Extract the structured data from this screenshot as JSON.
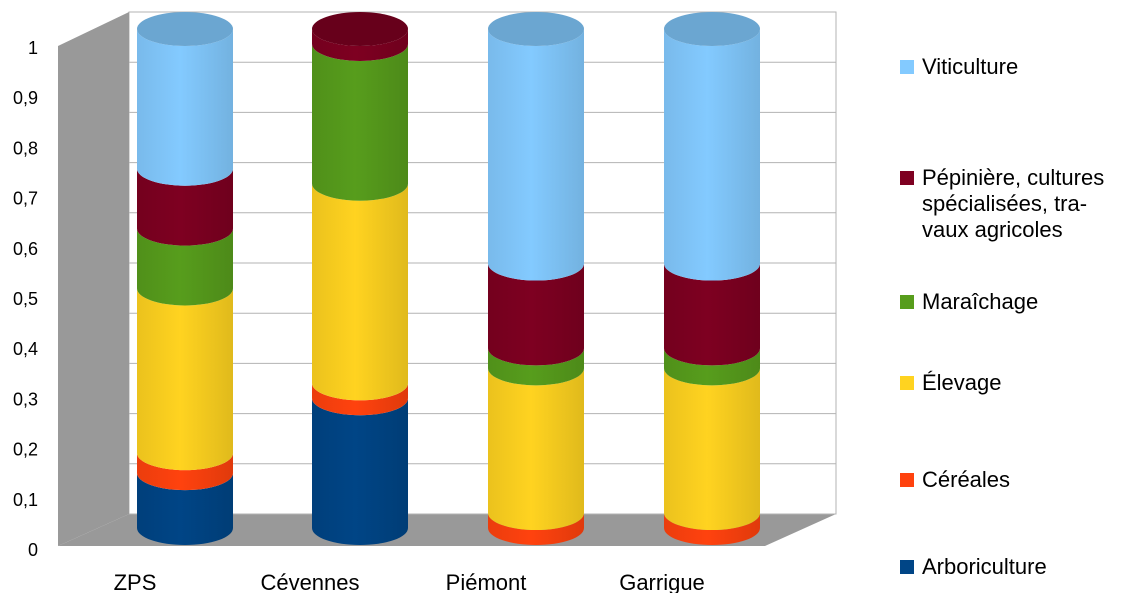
{
  "chart_data": {
    "type": "bar",
    "variant": "stacked-3d-cylinder",
    "title": "",
    "xlabel": "",
    "ylabel": "",
    "ylim": [
      0,
      1
    ],
    "yticks": [
      "0",
      "0,1",
      "0,2",
      "0,3",
      "0,4",
      "0,5",
      "0,6",
      "0,7",
      "0,8",
      "0,9",
      "1"
    ],
    "grid": true,
    "legend_position": "right",
    "categories": [
      "ZPS",
      "Cévennes",
      "Piémont",
      "Garrigue"
    ],
    "series": [
      {
        "name": "Arboriculture",
        "color": "#004586",
        "values": [
          0.11,
          0.26,
          0.0,
          0.0
        ]
      },
      {
        "name": "Céréales",
        "color": "#ff420e",
        "values": [
          0.04,
          0.03,
          0.03,
          0.03
        ]
      },
      {
        "name": "Élevage",
        "color": "#ffd320",
        "values": [
          0.33,
          0.4,
          0.29,
          0.29
        ]
      },
      {
        "name": "Maraîchage",
        "color": "#579d1c",
        "values": [
          0.12,
          0.28,
          0.04,
          0.04
        ]
      },
      {
        "name": "Pépinière, cultures spécialisées, tra-\nvaux agricoles",
        "color": "#7e0021",
        "values": [
          0.12,
          0.03,
          0.17,
          0.17
        ]
      },
      {
        "name": "Viticulture",
        "color": "#83caff",
        "values": [
          0.28,
          0.0,
          0.47,
          0.47
        ]
      }
    ]
  }
}
